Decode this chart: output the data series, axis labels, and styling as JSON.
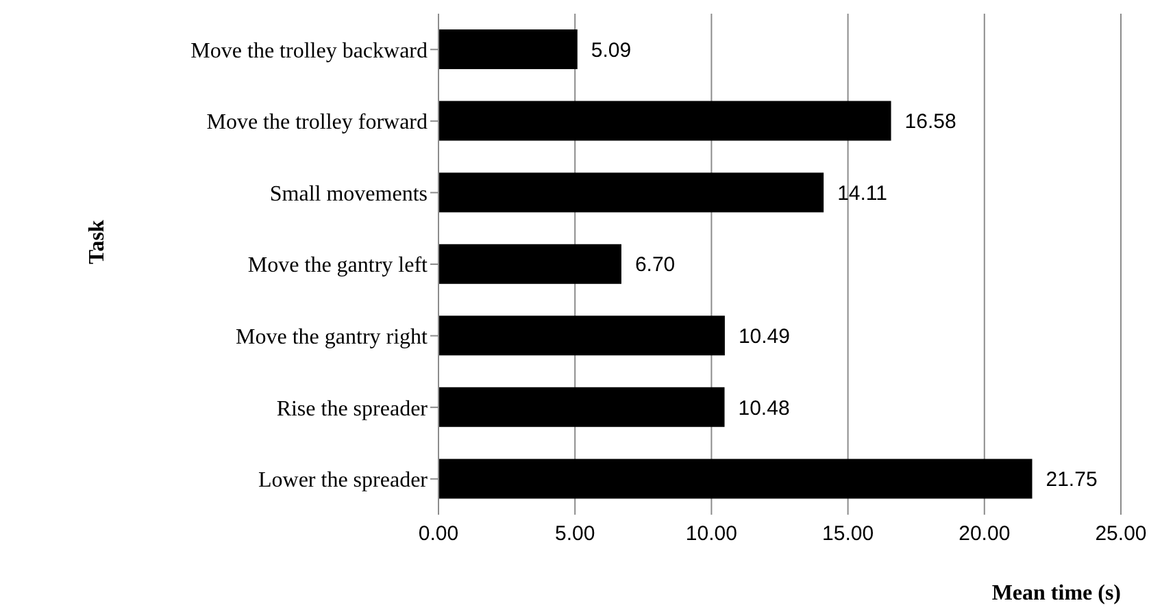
{
  "chart_data": {
    "type": "bar",
    "orientation": "horizontal",
    "xlabel": "Mean time (s)",
    "ylabel": "Task",
    "categories": [
      "Move the trolley backward",
      "Move the trolley forward",
      "Small movements",
      "Move the gantry left",
      "Move the gantry right",
      "Rise the spreader",
      "Lower the spreader"
    ],
    "values": [
      5.09,
      16.58,
      14.11,
      6.7,
      10.49,
      10.48,
      21.75
    ],
    "value_labels": [
      "5.09",
      "16.58",
      "14.11",
      "6.70",
      "10.49",
      "10.48",
      "21.75"
    ],
    "color": "#000000",
    "xlim": [
      0,
      25
    ],
    "xticks": [
      {
        "value": 0,
        "label": "0.00"
      },
      {
        "value": 5,
        "label": "5.00"
      },
      {
        "value": 10,
        "label": "10.00"
      },
      {
        "value": 15,
        "label": "15.00"
      },
      {
        "value": 20,
        "label": "20.00"
      },
      {
        "value": 25,
        "label": "25.00"
      }
    ],
    "grid": "x"
  }
}
